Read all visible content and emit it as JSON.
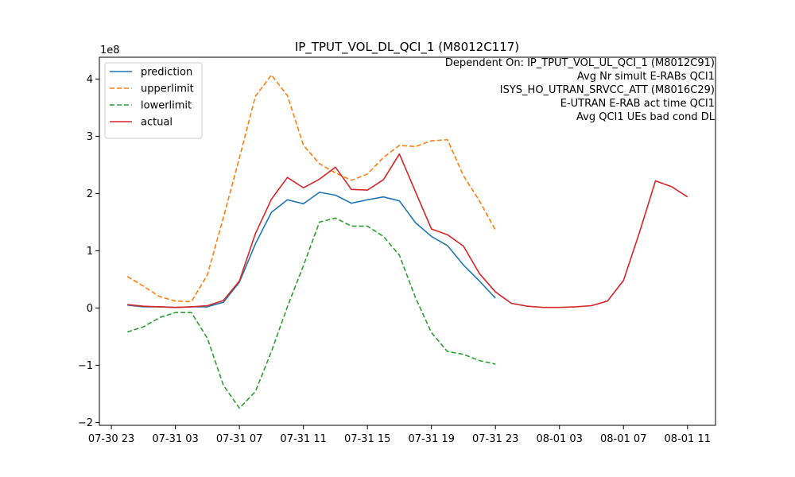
{
  "chart_data": {
    "type": "line",
    "title": "IP_TPUT_VOL_DL_QCI_1 (M8012C117)",
    "xlabel": "",
    "ylabel": "",
    "y_scale_label": "1e8",
    "ylim": [
      -2.05,
      4.38
    ],
    "xlim": [
      "2015-07-30 22:15",
      "2015-08-01 12:45"
    ],
    "x_tick_labels": [
      "07-30 23",
      "07-31 03",
      "07-31 07",
      "07-31 11",
      "07-31 15",
      "07-31 19",
      "07-31 23",
      "08-01 03",
      "08-01 07",
      "08-01 11"
    ],
    "y_ticks": [
      -2,
      -1,
      0,
      1,
      2,
      3,
      4
    ],
    "y_tick_labels": [
      "−2",
      "−1",
      "0",
      "1",
      "2",
      "3",
      "4"
    ],
    "grid": false,
    "legend_position": "top-left",
    "annotation_lines": [
      "Dependent On: IP_TPUT_VOL_UL_QCI_1 (M8012C91)",
      "Avg Nr simult E-RABs QCI1",
      "ISYS_HO_UTRAN_SRVCC_ATT (M8016C29)",
      "E-UTRAN E-RAB act time QCI1",
      "Avg QCI1 UEs bad cond DL"
    ],
    "x": [
      "2015-07-31 00:00",
      "2015-07-31 01:00",
      "2015-07-31 02:00",
      "2015-07-31 03:00",
      "2015-07-31 04:00",
      "2015-07-31 05:00",
      "2015-07-31 06:00",
      "2015-07-31 07:00",
      "2015-07-31 08:00",
      "2015-07-31 09:00",
      "2015-07-31 10:00",
      "2015-07-31 11:00",
      "2015-07-31 12:00",
      "2015-07-31 13:00",
      "2015-07-31 14:00",
      "2015-07-31 15:00",
      "2015-07-31 16:00",
      "2015-07-31 17:00",
      "2015-07-31 18:00",
      "2015-07-31 19:00",
      "2015-07-31 20:00",
      "2015-07-31 21:00",
      "2015-07-31 22:00",
      "2015-07-31 23:00",
      "2015-08-01 00:00",
      "2015-08-01 01:00",
      "2015-08-01 02:00",
      "2015-08-01 03:00",
      "2015-08-01 04:00",
      "2015-08-01 05:00",
      "2015-08-01 06:00",
      "2015-08-01 07:00",
      "2015-08-01 08:00",
      "2015-08-01 09:00",
      "2015-08-01 10:00",
      "2015-08-01 11:00",
      "2015-08-01 12:00"
    ],
    "series": [
      {
        "name": "prediction",
        "color": "#1f77b4",
        "dash": "solid",
        "values": [
          0.05,
          0.02,
          0.02,
          0.01,
          0.02,
          0.02,
          0.1,
          0.45,
          1.12,
          1.67,
          1.89,
          1.82,
          2.02,
          1.97,
          1.83,
          1.89,
          1.94,
          1.87,
          1.49,
          1.25,
          1.09,
          0.75,
          0.47,
          0.17,
          null,
          null,
          null,
          null,
          null,
          null,
          null,
          null,
          null,
          null,
          null,
          null,
          null
        ]
      },
      {
        "name": "upperlimit",
        "color": "#ff7f0e",
        "dash": "dashed",
        "values": [
          0.55,
          0.38,
          0.2,
          0.12,
          0.11,
          0.58,
          1.58,
          2.62,
          3.7,
          4.07,
          3.71,
          2.84,
          2.52,
          2.36,
          2.23,
          2.34,
          2.63,
          2.84,
          2.82,
          2.92,
          2.94,
          2.31,
          1.87,
          1.36,
          null,
          null,
          null,
          null,
          null,
          null,
          null,
          null,
          null,
          null,
          null,
          null,
          null
        ]
      },
      {
        "name": "lowerlimit",
        "color": "#2ca02c",
        "dash": "dashed",
        "values": [
          -0.42,
          -0.33,
          -0.17,
          -0.08,
          -0.08,
          -0.53,
          -1.35,
          -1.75,
          -1.46,
          -0.76,
          0.02,
          0.74,
          1.5,
          1.57,
          1.43,
          1.43,
          1.25,
          0.92,
          0.18,
          -0.43,
          -0.76,
          -0.81,
          -0.92,
          -0.98,
          null,
          null,
          null,
          null,
          null,
          null,
          null,
          null,
          null,
          null,
          null,
          null,
          null
        ]
      },
      {
        "name": "actual",
        "color": "#d62728",
        "dash": "solid",
        "values": [
          0.06,
          0.03,
          0.02,
          0.01,
          0.02,
          0.04,
          0.13,
          0.47,
          1.3,
          1.9,
          2.28,
          2.1,
          2.25,
          2.46,
          2.07,
          2.06,
          2.24,
          2.69,
          2.03,
          1.38,
          1.28,
          1.08,
          0.6,
          0.28,
          0.08,
          0.03,
          0.01,
          0.01,
          0.02,
          0.04,
          0.12,
          0.48,
          1.32,
          2.22,
          2.12,
          1.94,
          null
        ]
      }
    ]
  }
}
